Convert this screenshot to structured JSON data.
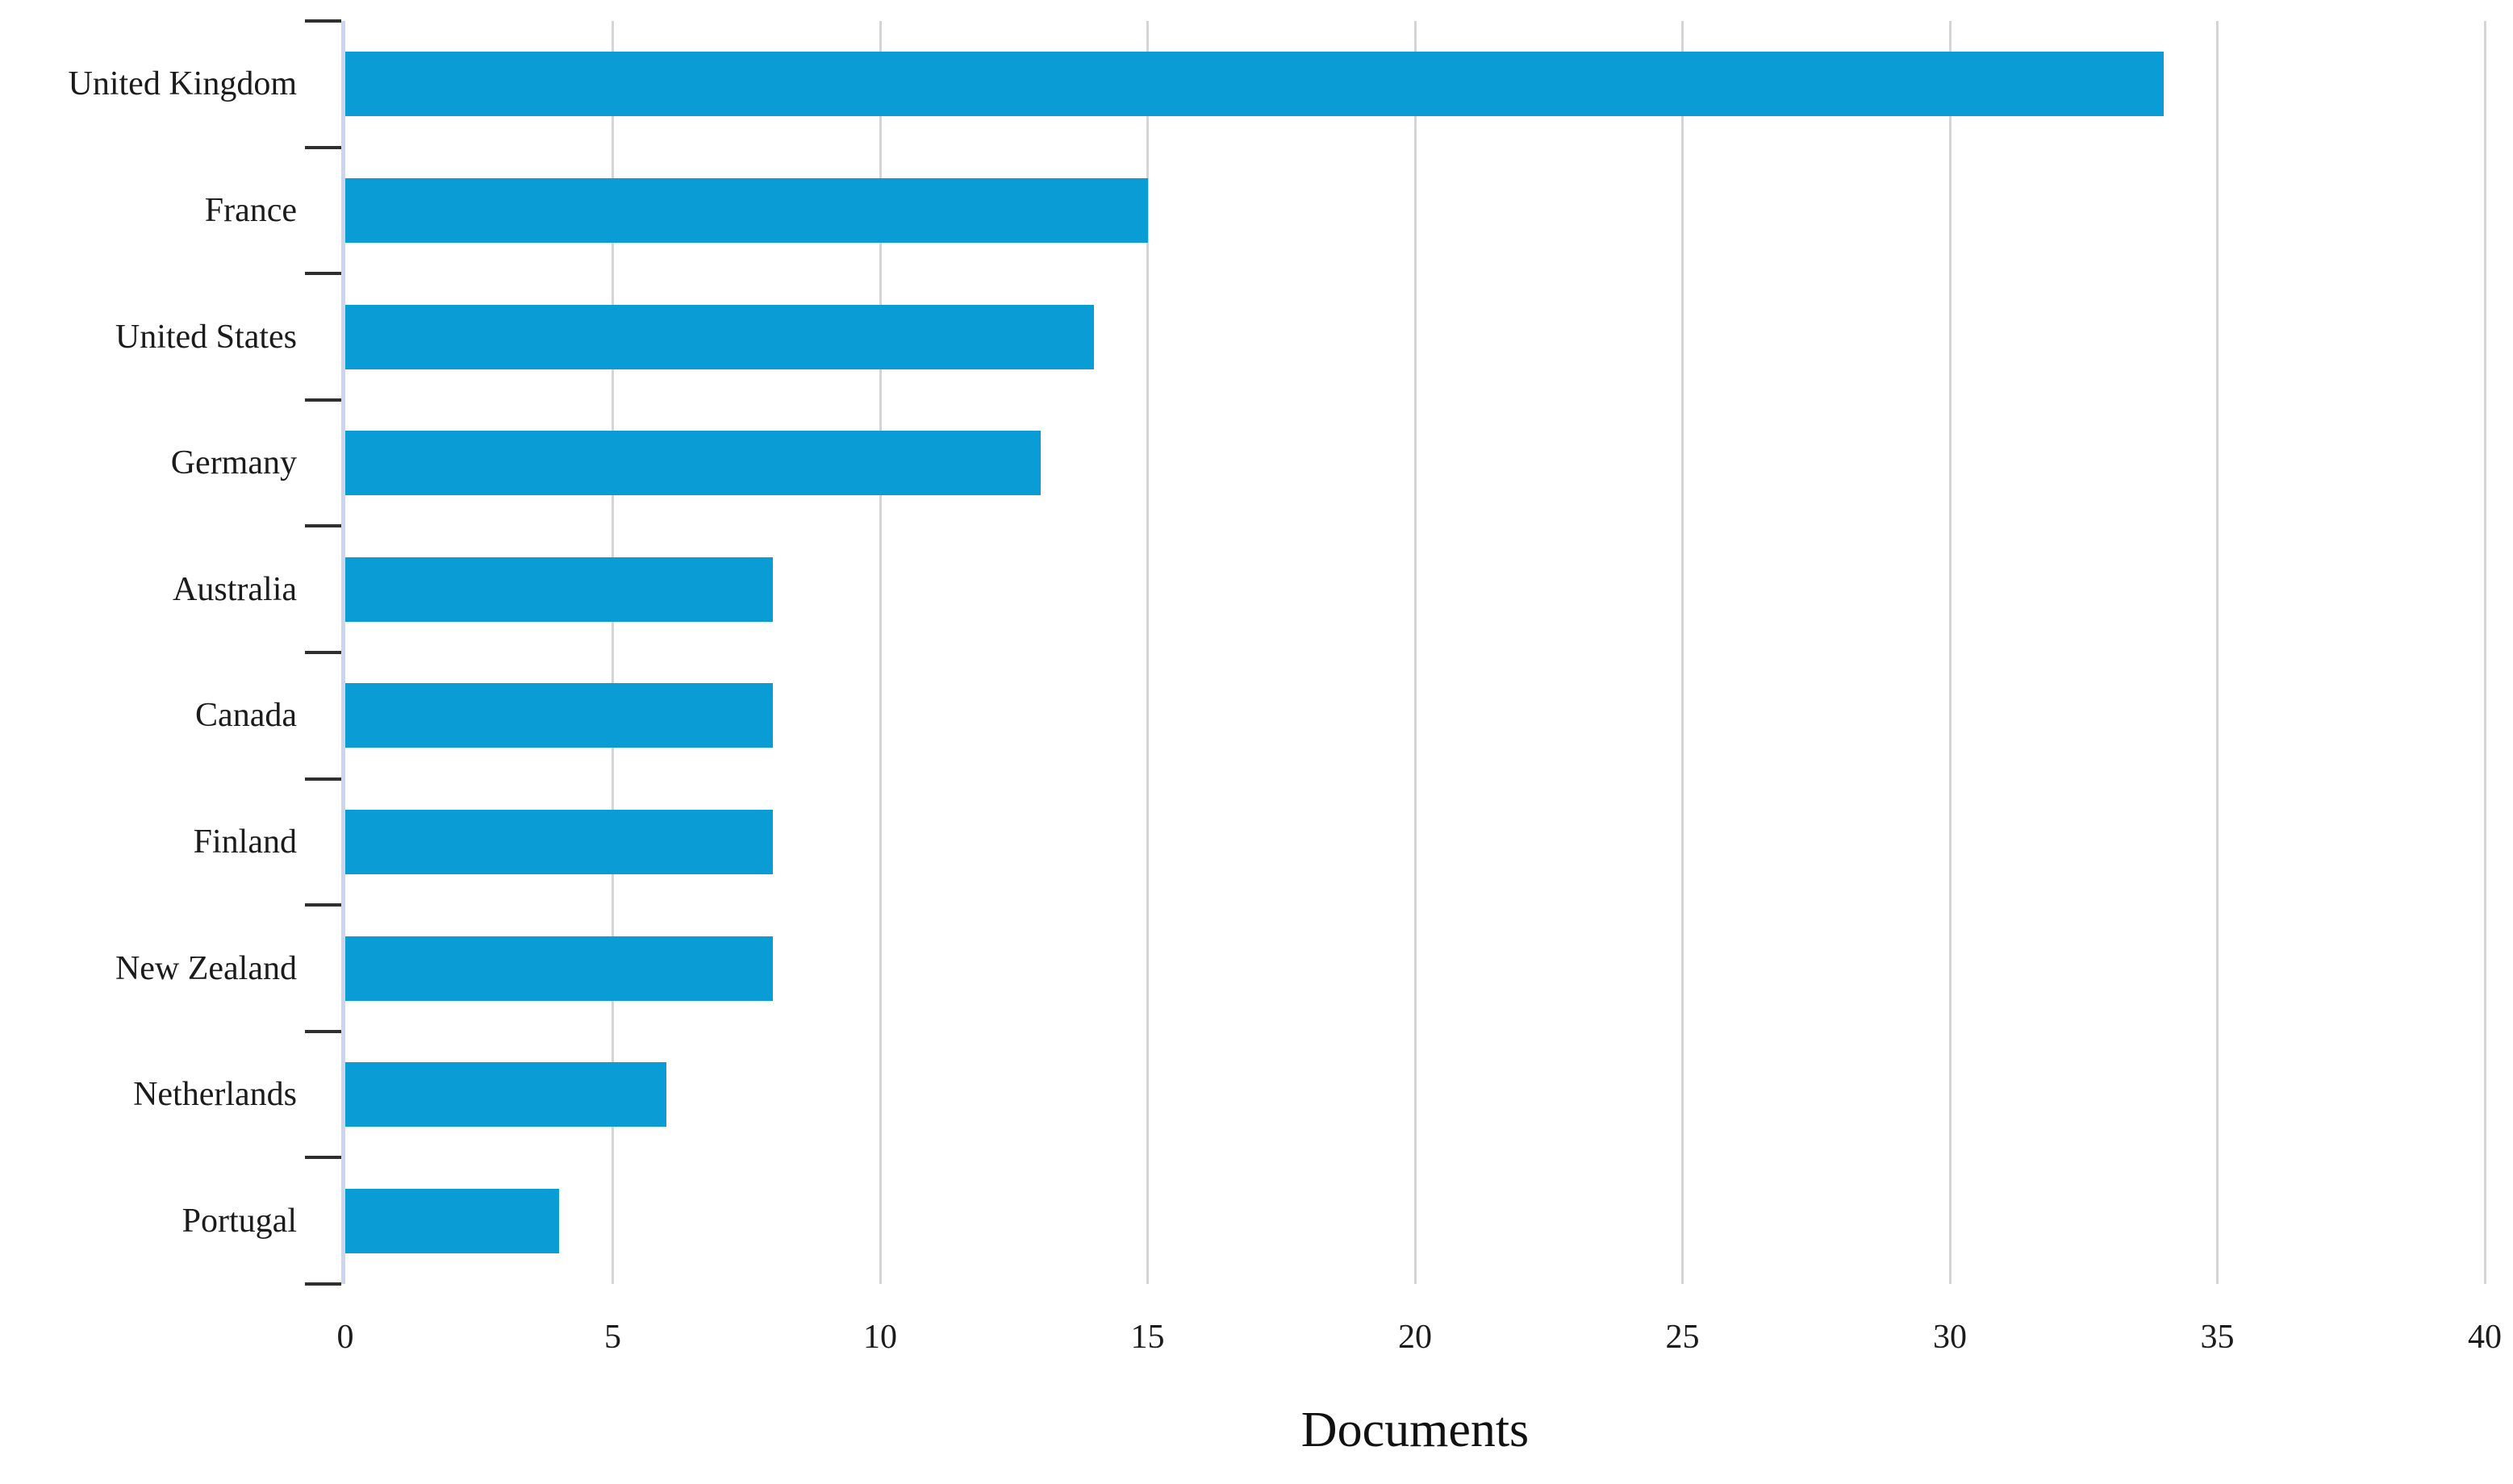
{
  "chart_data": {
    "type": "bar",
    "orientation": "horizontal",
    "title": "",
    "xlabel": "Documents",
    "ylabel": "",
    "categories": [
      "United Kingdom",
      "France",
      "United States",
      "Germany",
      "Australia",
      "Canada",
      "Finland",
      "New Zealand",
      "Netherlands",
      "Portugal"
    ],
    "values": [
      34,
      15,
      14,
      13,
      8,
      8,
      8,
      8,
      6,
      4
    ],
    "xlim": [
      0,
      40
    ],
    "x_ticks": [
      "0",
      "5",
      "10",
      "15",
      "20",
      "25",
      "30",
      "35",
      "40"
    ],
    "x_tick_values": [
      0,
      5,
      10,
      15,
      20,
      25,
      30,
      35,
      40
    ],
    "grid": "vertical-gridlines-on",
    "legend": "none",
    "colors": {
      "bar": "#0a9cd4",
      "axis_spine": "#ccd5ee",
      "gridline": "#d5d5d5",
      "tick_mark": "#2f2f2f",
      "label_text": "#1b1b1b",
      "background": "#ffffff"
    }
  }
}
